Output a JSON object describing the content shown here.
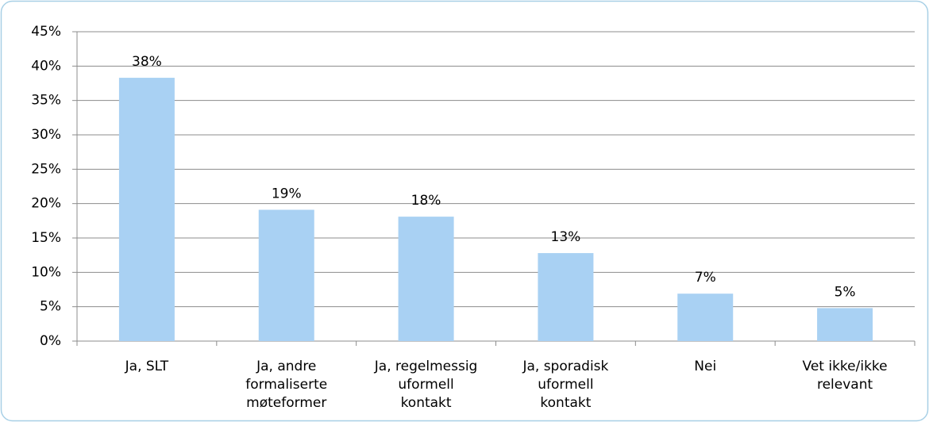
{
  "chart_data": {
    "type": "bar",
    "categories": [
      "Ja, SLT",
      "Ja, andre\nformaliserte\nmøteformer",
      "Ja, regelmessig\nuformell\nkontakt",
      "Ja, sporadisk\nuformell\nkontakt",
      "Nei",
      "Vet ikke/ikke\nrelevant"
    ],
    "values": [
      38.3,
      19.1,
      18.1,
      12.8,
      6.9,
      4.8
    ],
    "value_labels": [
      "38%",
      "19%",
      "18%",
      "13%",
      "7%",
      "5%"
    ],
    "color": "#a9d1f3",
    "ylim": [
      0,
      45
    ],
    "yticks": [
      {
        "value": 0,
        "label": "0%"
      },
      {
        "value": 5,
        "label": "5%"
      },
      {
        "value": 10,
        "label": "10%"
      },
      {
        "value": 15,
        "label": "15%"
      },
      {
        "value": 20,
        "label": "20%"
      },
      {
        "value": 25,
        "label": "25%"
      },
      {
        "value": 30,
        "label": "30%"
      },
      {
        "value": 35,
        "label": "35%"
      },
      {
        "value": 40,
        "label": "40%"
      },
      {
        "value": 45,
        "label": "45%"
      }
    ],
    "grid": true
  }
}
